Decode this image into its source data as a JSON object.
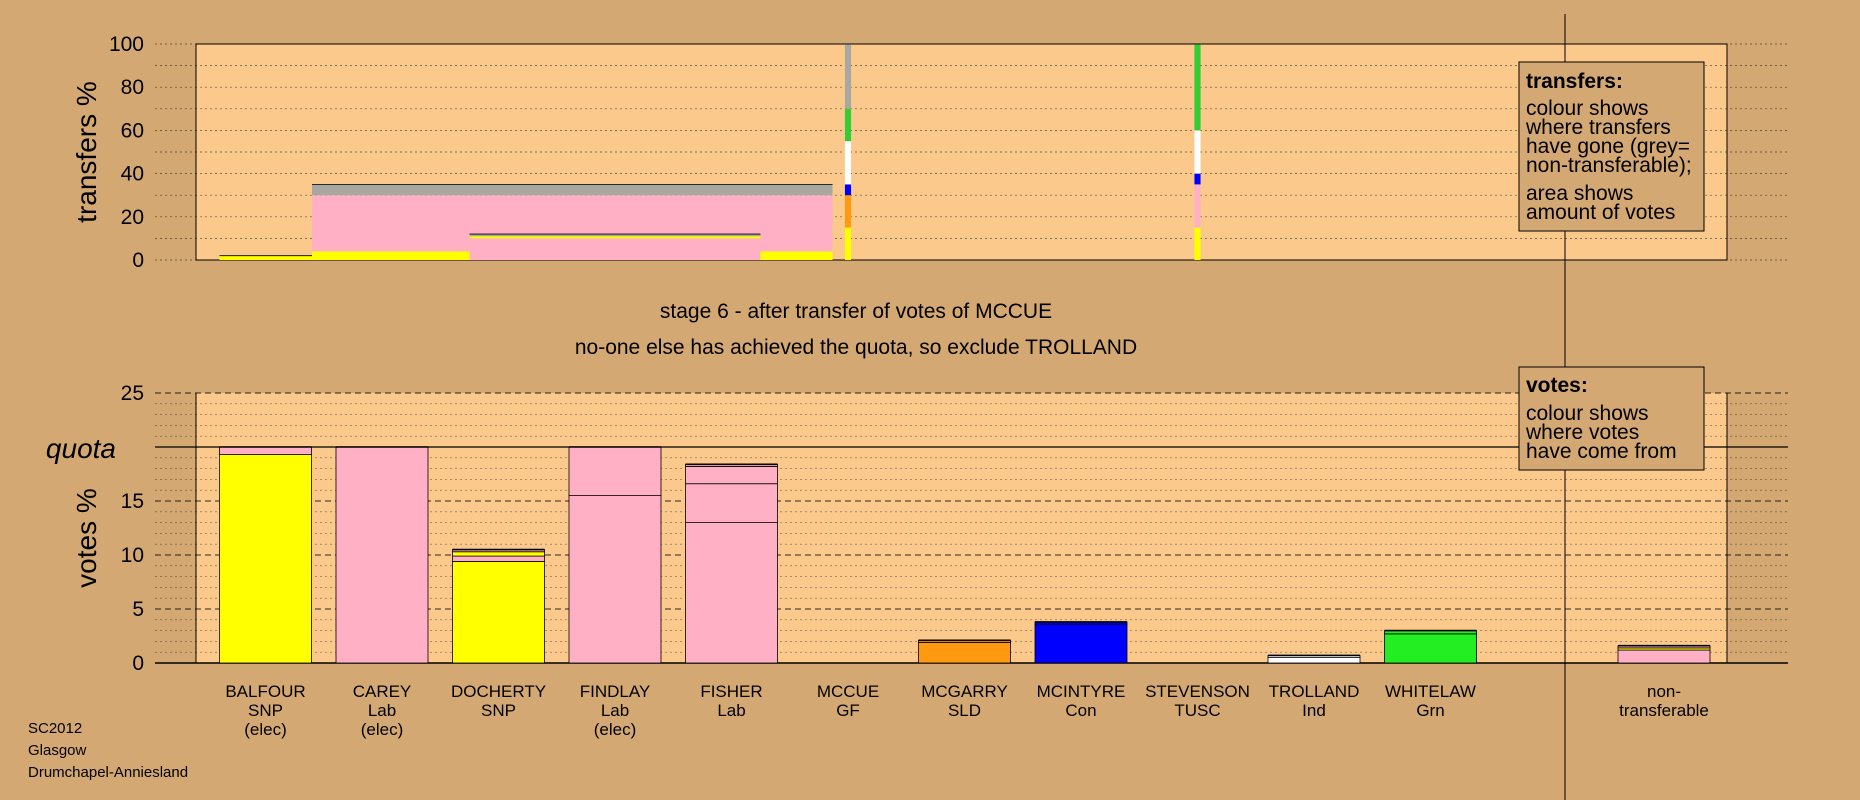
{
  "stage_text": "stage 6 - after transfer of votes of MCCUE",
  "exclude_text": "no-one else has achieved the quota, so exclude TROLLAND",
  "footer": [
    "SC2012",
    "Glasgow",
    "Drumchapel-Anniesland"
  ],
  "legend_transfers": {
    "title": "transfers:",
    "lines": [
      "colour shows",
      "where transfers",
      "have gone (grey=",
      "non-transferable);",
      "area shows",
      "amount of votes"
    ]
  },
  "legend_votes": {
    "title": "votes:",
    "lines": [
      "colour shows",
      "where votes",
      "have come from"
    ]
  },
  "colors": {
    "background": "#d4a873",
    "plot_bg": "#fcc98c",
    "SNP": "#ffff00",
    "Lab": "#ffb0c4",
    "GF": "#33cc33",
    "SLD": "#ff9910",
    "Con": "#0000ff",
    "TUSC": "#cc0000",
    "Ind": "#ffffff",
    "Grn": "#22ee22",
    "nontransferable": "#a8a8a0"
  },
  "chart_data": [
    {
      "id": "transfers",
      "type": "bar",
      "ylabel": "transfers %",
      "ylim": [
        0,
        100
      ],
      "yticks": [
        0,
        20,
        40,
        60,
        80,
        100
      ],
      "grid": true,
      "categories": [
        "BALFOUR",
        "CAREY",
        "DOCHERTY",
        "FINDLAY",
        "FISHER",
        "MCCUE",
        "MCGARRY",
        "MCINTYRE",
        "STEVENSON",
        "TROLLAND",
        "WHITELAW",
        "non-transferable"
      ],
      "bars": [
        {
          "category": "BALFOUR",
          "width_share": 0.22,
          "segments": [
            {
              "party": "SNP",
              "value": 2
            }
          ]
        },
        {
          "category": "CAREY",
          "width_share": 0.34,
          "segments": [
            {
              "party": "SNP",
              "value": 4
            },
            {
              "party": "Lab",
              "value": 26
            },
            {
              "party": "nontransferable",
              "value": 5
            }
          ]
        },
        {
          "category": "FINDLAY",
          "width_share": 0.19,
          "segments": [
            {
              "party": "Lab",
              "value": 10
            },
            {
              "party": "SNP",
              "value": 1
            },
            {
              "party": "nontransferable",
              "value": 1
            }
          ]
        },
        {
          "category": "MCCUE",
          "width_share": 0.004,
          "segments": [
            {
              "party": "SNP",
              "value": 15
            },
            {
              "party": "SLD",
              "value": 15
            },
            {
              "party": "Con",
              "value": 5
            },
            {
              "party": "Ind",
              "value": 20
            },
            {
              "party": "GF",
              "value": 15
            },
            {
              "party": "nontransferable",
              "value": 30
            }
          ]
        },
        {
          "category": "STEVENSON",
          "width_share": 0.004,
          "segments": [
            {
              "party": "SNP",
              "value": 15
            },
            {
              "party": "Lab",
              "value": 20
            },
            {
              "party": "Con",
              "value": 5
            },
            {
              "party": "Ind",
              "value": 20
            },
            {
              "party": "GF",
              "value": 40
            }
          ]
        }
      ]
    },
    {
      "id": "votes",
      "type": "bar",
      "ylabel": "votes %",
      "ylim": [
        0,
        25
      ],
      "yticks": [
        0,
        5,
        10,
        15,
        20,
        25
      ],
      "quota": 20,
      "quota_label": "quota",
      "grid": true,
      "candidates": [
        {
          "name": "BALFOUR",
          "party": "SNP",
          "status": "(elec)",
          "segments": [
            {
              "party": "SNP",
              "value": 19.3
            },
            {
              "party": "Lab",
              "value": 0.7
            }
          ]
        },
        {
          "name": "CAREY",
          "party": "Lab",
          "status": "(elec)",
          "segments": [
            {
              "party": "Lab",
              "value": 20
            }
          ]
        },
        {
          "name": "DOCHERTY",
          "party": "SNP",
          "status": "",
          "segments": [
            {
              "party": "SNP",
              "value": 9.4
            },
            {
              "party": "Lab",
              "value": 0.5
            },
            {
              "party": "SNP",
              "value": 0.4
            },
            {
              "party": "Lab",
              "value": 0.2
            }
          ]
        },
        {
          "name": "FINDLAY",
          "party": "Lab",
          "status": "(elec)",
          "segments": [
            {
              "party": "Lab",
              "value": 15.5
            },
            {
              "party": "Lab",
              "value": 4.5
            }
          ]
        },
        {
          "name": "FISHER",
          "party": "Lab",
          "status": "",
          "segments": [
            {
              "party": "Lab",
              "value": 13.0
            },
            {
              "party": "Lab",
              "value": 3.6
            },
            {
              "party": "Lab",
              "value": 1.6
            },
            {
              "party": "Lab",
              "value": 0.2
            }
          ]
        },
        {
          "name": "MCCUE",
          "party": "GF",
          "status": "",
          "segments": []
        },
        {
          "name": "MCGARRY",
          "party": "SLD",
          "status": "",
          "segments": [
            {
              "party": "SLD",
              "value": 1.9
            },
            {
              "party": "SLD",
              "value": 0.2
            }
          ]
        },
        {
          "name": "MCINTYRE",
          "party": "Con",
          "status": "",
          "segments": [
            {
              "party": "Con",
              "value": 3.6
            },
            {
              "party": "Con",
              "value": 0.2
            }
          ]
        },
        {
          "name": "STEVENSON",
          "party": "TUSC",
          "status": "",
          "segments": []
        },
        {
          "name": "TROLLAND",
          "party": "Ind",
          "status": "",
          "segments": [
            {
              "party": "Ind",
              "value": 0.5
            },
            {
              "party": "Ind",
              "value": 0.2
            }
          ]
        },
        {
          "name": "WHITELAW",
          "party": "Grn",
          "status": "",
          "segments": [
            {
              "party": "Grn",
              "value": 2.7
            },
            {
              "party": "Grn",
              "value": 0.3
            }
          ]
        },
        {
          "name": "non-",
          "party": "transferable",
          "status": "",
          "segments": [
            {
              "party": "Lab",
              "value": 1.2
            },
            {
              "party": "SNP",
              "value": 0.2
            },
            {
              "party": "Lab",
              "value": 0.2
            }
          ]
        }
      ]
    }
  ]
}
